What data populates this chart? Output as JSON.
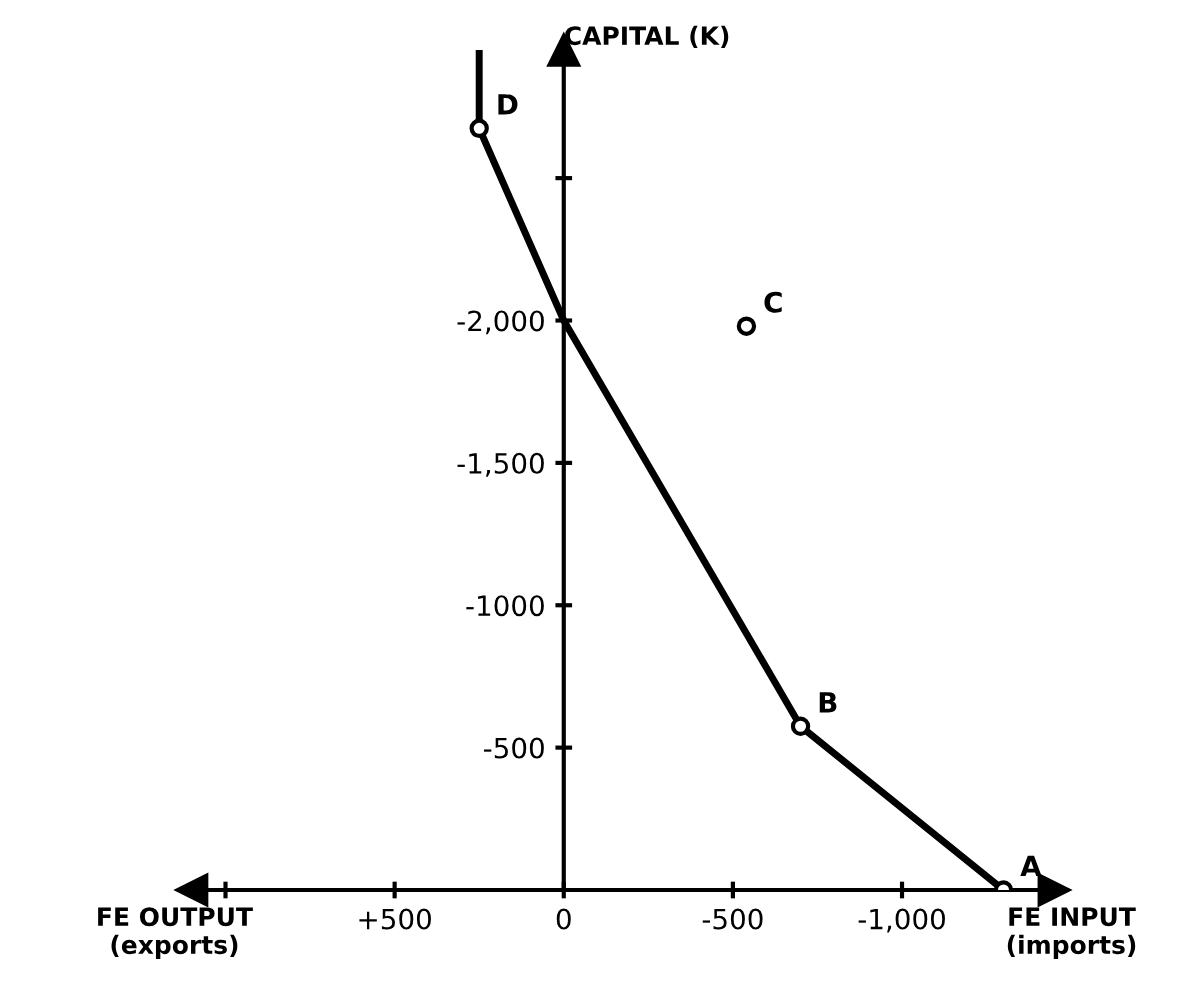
{
  "chart_data": {
    "type": "line",
    "ylabel": "CAPITAL (K)",
    "xlabel": "FE INPUT\n(imports)",
    "annotations": [
      "FE OUTPUT\n(exports)",
      {
        "text": "A",
        "x": -1300,
        "y": 0
      },
      {
        "text": "B",
        "x": -700,
        "y": -575
      },
      {
        "text": "C",
        "x": -540,
        "y": -1980
      },
      {
        "text": "D",
        "x": 250,
        "y": -2675
      }
    ],
    "series": [
      {
        "color": "#000000",
        "marker": "none",
        "x": [
          250,
          250,
          0,
          -700,
          -1300
        ],
        "values": [
          -2950,
          -2675,
          -2000,
          -575,
          0
        ]
      },
      {
        "type": "scatter",
        "color": "#000000",
        "marker": "circle",
        "x": [
          -1300,
          -700,
          -540,
          250
        ],
        "values": [
          0,
          -575,
          -1980,
          -2675
        ]
      }
    ],
    "xlim": [
      1100,
      -1450
    ],
    "ylim": [
      0,
      -2950
    ],
    "xticks": [
      {
        "value": 1000,
        "label": null
      },
      {
        "value": 500,
        "label": "+500"
      },
      0,
      -500,
      {
        "value": -1000,
        "label": "-1,000"
      }
    ],
    "yticks": [
      {
        "value": -500,
        "label": "-500"
      },
      {
        "value": -1000,
        "label": "-1000"
      },
      {
        "value": -1500,
        "label": "-1,500"
      },
      {
        "value": -2000,
        "label": "-2,000"
      },
      {
        "value": -2500,
        "label": null
      }
    ],
    "grid": false
  }
}
